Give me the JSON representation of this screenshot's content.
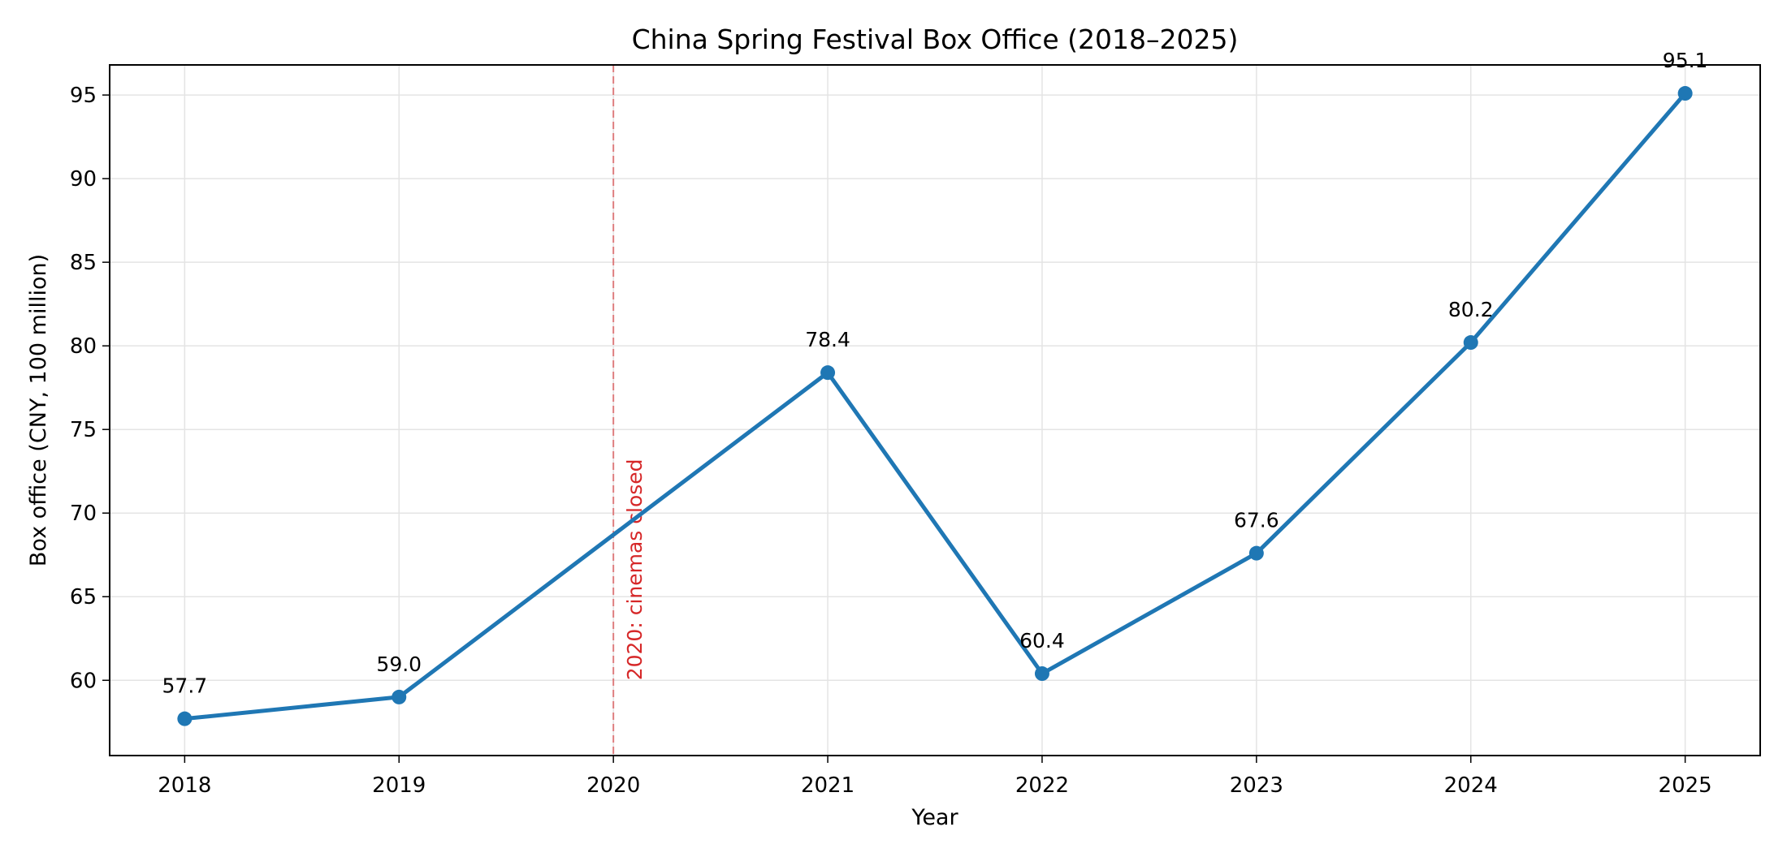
{
  "chart_data": {
    "type": "line",
    "title": "China Spring Festival Box Office (2018–2025)",
    "xlabel": "Year",
    "ylabel": "Box office (CNY, 100 million)",
    "x": [
      "2018",
      "2019",
      "2021",
      "2022",
      "2023",
      "2024",
      "2025"
    ],
    "x_ticks": [
      "2018",
      "2019",
      "2020",
      "2021",
      "2022",
      "2023",
      "2024",
      "2025"
    ],
    "series": [
      {
        "values": [
          57.7,
          59.0,
          78.4,
          60.4,
          67.6,
          80.2,
          95.1
        ],
        "labels": [
          "57.7",
          "59.0",
          "78.4",
          "60.4",
          "67.6",
          "80.2",
          "95.1"
        ],
        "color": "#1f77b4"
      }
    ],
    "xlim": [
      2017.65,
      2025.35
    ],
    "ylim": [
      55.5,
      96.8
    ],
    "y_ticks": [
      60,
      65,
      70,
      75,
      80,
      85,
      90,
      95
    ],
    "grid": true,
    "annotation": {
      "x": 2020,
      "text": "2020: cinemas closed",
      "color": "#d62728"
    }
  }
}
